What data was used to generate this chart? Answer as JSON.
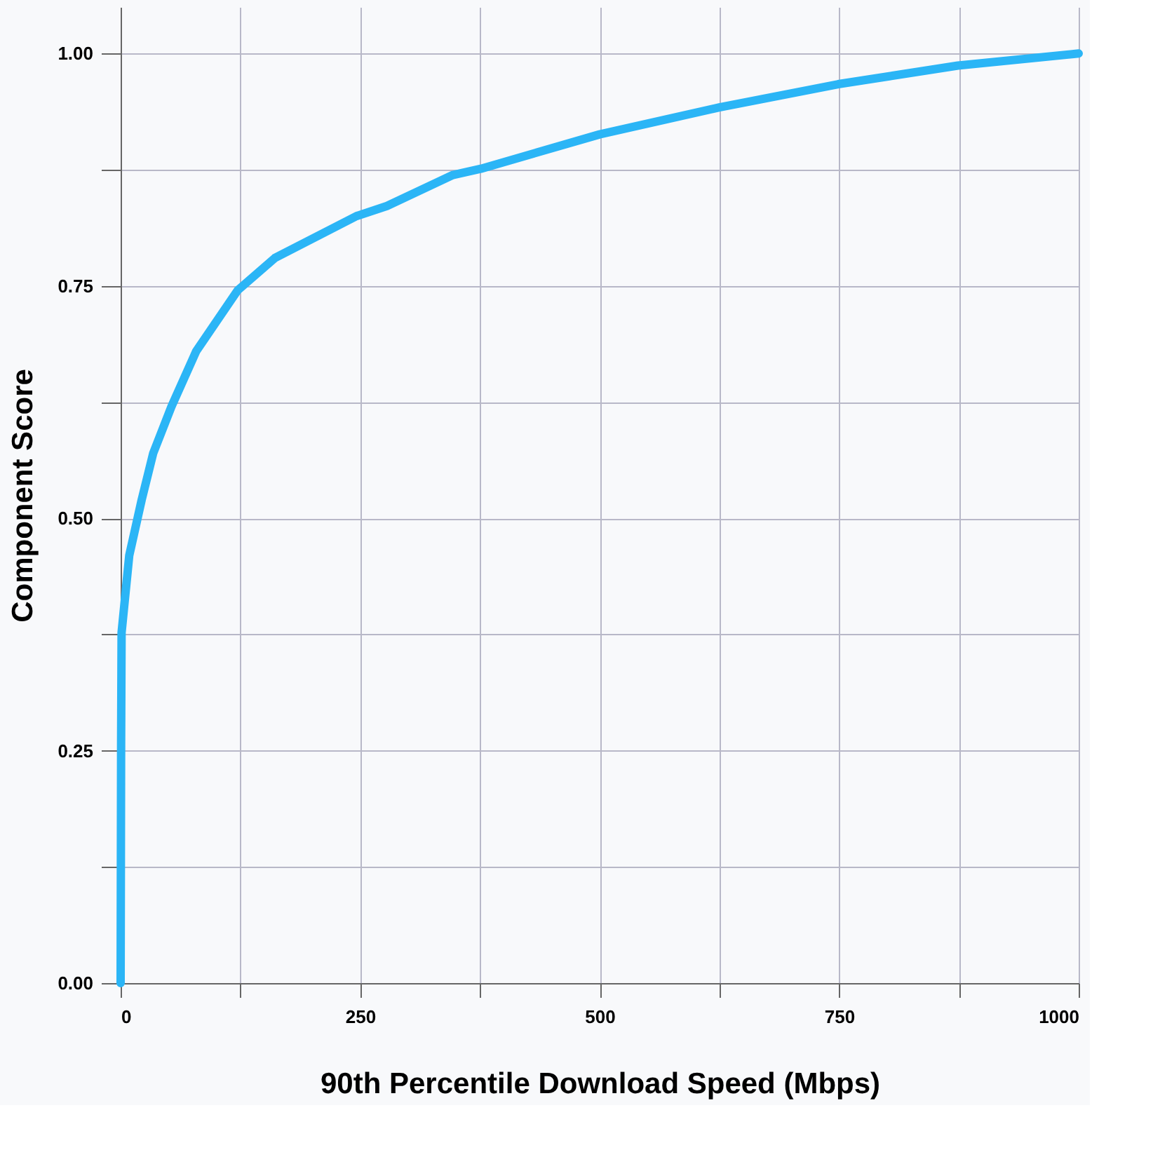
{
  "chart_data": {
    "type": "line",
    "xlabel": "90th Percentile Download Speed (Mbps)",
    "ylabel": "Component Score",
    "x": [
      0,
      0.5,
      1,
      9,
      22,
      34,
      53,
      79,
      122,
      161,
      246,
      278,
      346,
      376,
      500,
      625,
      749,
      874,
      1000
    ],
    "series": [
      {
        "color": "#2bb5f6",
        "values": [
          0,
          0.256,
          0.377,
          0.46,
          0.52,
          0.57,
          0.62,
          0.68,
          0.745,
          0.78,
          0.825,
          0.836,
          0.869,
          0.876,
          0.913,
          0.942,
          0.967,
          0.987,
          1.0
        ]
      }
    ],
    "xlim": [
      0,
      1000
    ],
    "ylim": [
      0,
      1.05
    ],
    "xticks": [
      0,
      {
        "value": 125,
        "label": null
      },
      250,
      {
        "value": 375,
        "label": null
      },
      500,
      {
        "value": 625,
        "label": null
      },
      750,
      {
        "value": 875,
        "label": null
      },
      1000
    ],
    "yticks": [
      {
        "value": 0,
        "label": "0.00"
      },
      {
        "value": 0.125,
        "label": null
      },
      {
        "value": 0.25,
        "label": "0.25"
      },
      {
        "value": 0.375,
        "label": null
      },
      {
        "value": 0.5,
        "label": "0.50"
      },
      {
        "value": 0.625,
        "label": null
      },
      {
        "value": 0.75,
        "label": "0.75"
      },
      {
        "value": 0.875,
        "label": null
      },
      {
        "value": 1,
        "label": "1.00"
      }
    ],
    "grid": true,
    "marker": "none",
    "line_style": "solid"
  }
}
